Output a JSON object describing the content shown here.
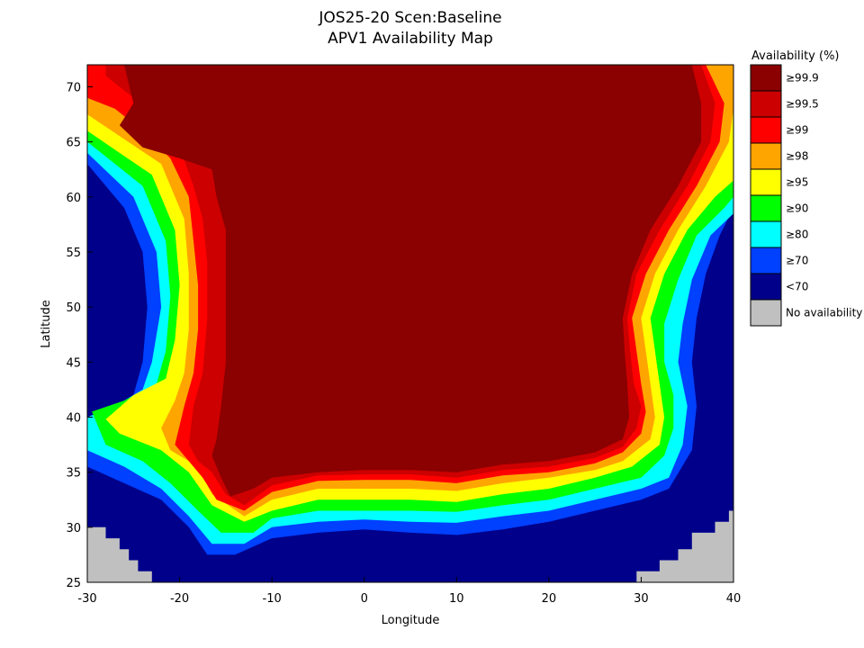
{
  "chart_data": {
    "type": "heatmap",
    "title_lines": [
      "JOS25-20 Scen:Baseline",
      "APV1 Availability Map"
    ],
    "xlabel": "Longitude",
    "ylabel": "Latitude",
    "xlim": [
      -30,
      40
    ],
    "ylim": [
      25,
      72
    ],
    "x_ticks": [
      -30,
      -20,
      -10,
      0,
      10,
      20,
      30,
      40
    ],
    "y_ticks": [
      25,
      30,
      35,
      40,
      45,
      50,
      55,
      60,
      65,
      70
    ],
    "legend": {
      "title": "Availability (%)",
      "placement": "right",
      "classes": [
        {
          "label": "≥99.9",
          "color": "#8b0000"
        },
        {
          "label": "≥99.5",
          "color": "#cc0000"
        },
        {
          "label": "≥99",
          "color": "#ff0000"
        },
        {
          "label": "≥98",
          "color": "#ffa500"
        },
        {
          "label": "≥95",
          "color": "#ffff00"
        },
        {
          "label": "≥90",
          "color": "#00ff00"
        },
        {
          "label": "≥80",
          "color": "#00ffff"
        },
        {
          "label": "≥70",
          "color": "#0040ff"
        },
        {
          "label": "<70",
          "color": "#00008b"
        },
        {
          "label": "No availability",
          "color": "#c0c0c0"
        }
      ]
    },
    "regions": [
      {
        "class": "<70",
        "polygon": [
          [
            -30,
            72
          ],
          [
            40,
            72
          ],
          [
            40,
            25
          ],
          [
            -30,
            25
          ]
        ]
      },
      {
        "class": "≥70",
        "polygon": [
          [
            -30,
            63
          ],
          [
            -26,
            59
          ],
          [
            -24,
            55
          ],
          [
            -23.5,
            50
          ],
          [
            -24,
            45
          ],
          [
            -25,
            42
          ],
          [
            -28,
            40.5
          ],
          [
            -30,
            39.5
          ],
          [
            -30,
            35.5
          ],
          [
            -26,
            34
          ],
          [
            -22,
            32.5
          ],
          [
            -19,
            30
          ],
          [
            -17,
            27.5
          ],
          [
            -14,
            27.5
          ],
          [
            -10,
            29
          ],
          [
            -5,
            29.5
          ],
          [
            0,
            29.8
          ],
          [
            5,
            29.5
          ],
          [
            10,
            29.3
          ],
          [
            15,
            29.8
          ],
          [
            20,
            30.5
          ],
          [
            25,
            31.5
          ],
          [
            30,
            32.5
          ],
          [
            33,
            33.5
          ],
          [
            35.5,
            37
          ],
          [
            36,
            41
          ],
          [
            35.5,
            45
          ],
          [
            36,
            49
          ],
          [
            37,
            53
          ],
          [
            38.5,
            56.5
          ],
          [
            40,
            59
          ],
          [
            40,
            72
          ],
          [
            -30,
            72
          ]
        ]
      },
      {
        "class": "≥80",
        "polygon": [
          [
            -30,
            64
          ],
          [
            -25,
            60
          ],
          [
            -22.5,
            55
          ],
          [
            -22,
            50
          ],
          [
            -23,
            45
          ],
          [
            -24,
            42.5
          ],
          [
            -27,
            41
          ],
          [
            -30,
            40
          ],
          [
            -30,
            37
          ],
          [
            -26,
            35.5
          ],
          [
            -22,
            33.5
          ],
          [
            -19,
            31
          ],
          [
            -16.5,
            28.5
          ],
          [
            -13,
            28.5
          ],
          [
            -10,
            30
          ],
          [
            -5,
            30.5
          ],
          [
            0,
            30.7
          ],
          [
            5,
            30.5
          ],
          [
            10,
            30.4
          ],
          [
            15,
            31
          ],
          [
            20,
            31.5
          ],
          [
            25,
            32.5
          ],
          [
            30,
            33.5
          ],
          [
            33,
            34.5
          ],
          [
            34.5,
            37.5
          ],
          [
            35,
            41
          ],
          [
            34,
            45
          ],
          [
            34.5,
            48.5
          ],
          [
            35.5,
            52.5
          ],
          [
            37.5,
            56.5
          ],
          [
            40,
            58.5
          ],
          [
            40,
            72
          ],
          [
            -30,
            72
          ]
        ]
      },
      {
        "class": "≥90",
        "polygon": [
          [
            -30,
            65
          ],
          [
            -24,
            61
          ],
          [
            -21.5,
            56
          ],
          [
            -21,
            51
          ],
          [
            -21.5,
            46
          ],
          [
            -22.5,
            43
          ],
          [
            -26,
            41.5
          ],
          [
            -29.5,
            40.5
          ],
          [
            -28,
            37.5
          ],
          [
            -24,
            36
          ],
          [
            -21,
            34
          ],
          [
            -18,
            31.5
          ],
          [
            -15.5,
            29.5
          ],
          [
            -12,
            29.5
          ],
          [
            -10,
            30.8
          ],
          [
            -5,
            31.5
          ],
          [
            0,
            31.5
          ],
          [
            5,
            31.5
          ],
          [
            10,
            31.4
          ],
          [
            15,
            32
          ],
          [
            20,
            32.5
          ],
          [
            25,
            33.5
          ],
          [
            30,
            34.5
          ],
          [
            32.5,
            36.5
          ],
          [
            33.5,
            39
          ],
          [
            33.5,
            42
          ],
          [
            32.5,
            45
          ],
          [
            32.5,
            48.5
          ],
          [
            34,
            52.5
          ],
          [
            36,
            56.5
          ],
          [
            39,
            59
          ],
          [
            40,
            60
          ],
          [
            40,
            72
          ],
          [
            -30,
            72
          ]
        ]
      },
      {
        "class": "≥95",
        "polygon": [
          [
            -30,
            66
          ],
          [
            -23,
            62
          ],
          [
            -20.5,
            57
          ],
          [
            -20,
            52
          ],
          [
            -20.5,
            47
          ],
          [
            -21.5,
            43.5
          ],
          [
            -25,
            42
          ],
          [
            -28,
            39.8
          ],
          [
            -26.5,
            38.5
          ],
          [
            -22,
            37
          ],
          [
            -19,
            35
          ],
          [
            -16.5,
            32
          ],
          [
            -13,
            30.5
          ],
          [
            -10,
            31.5
          ],
          [
            -5,
            32.5
          ],
          [
            0,
            32.5
          ],
          [
            5,
            32.5
          ],
          [
            10,
            32.3
          ],
          [
            15,
            33
          ],
          [
            20,
            33.5
          ],
          [
            25,
            34.5
          ],
          [
            29,
            35.5
          ],
          [
            32,
            37.5
          ],
          [
            32.5,
            40
          ],
          [
            32,
            43
          ],
          [
            31.5,
            46
          ],
          [
            31,
            49
          ],
          [
            32.5,
            53
          ],
          [
            35,
            57
          ],
          [
            38,
            60
          ],
          [
            40,
            61.5
          ],
          [
            40,
            72
          ],
          [
            -30,
            72
          ]
        ]
      },
      {
        "class": "≥98",
        "polygon": [
          [
            -30,
            67.5
          ],
          [
            -22,
            63
          ],
          [
            -19.5,
            58
          ],
          [
            -19,
            53
          ],
          [
            -19,
            48
          ],
          [
            -19.5,
            44
          ],
          [
            -20.5,
            41.5
          ],
          [
            -22,
            39
          ],
          [
            -21,
            37
          ],
          [
            -18,
            35.5
          ],
          [
            -16.5,
            33
          ],
          [
            -13,
            31
          ],
          [
            -10,
            32.5
          ],
          [
            -5,
            33.5
          ],
          [
            0,
            33.5
          ],
          [
            5,
            33.5
          ],
          [
            10,
            33.3
          ],
          [
            15,
            34
          ],
          [
            20,
            34.5
          ],
          [
            25,
            35.2
          ],
          [
            28,
            36
          ],
          [
            31,
            38
          ],
          [
            31.5,
            40
          ],
          [
            31,
            43
          ],
          [
            30.5,
            46
          ],
          [
            30,
            49
          ],
          [
            31.5,
            53
          ],
          [
            34,
            57
          ],
          [
            37,
            61
          ],
          [
            39.5,
            65
          ],
          [
            40,
            68
          ],
          [
            40,
            72
          ],
          [
            -30,
            72
          ]
        ]
      },
      {
        "class": "≥99",
        "polygon": [
          [
            -30,
            69
          ],
          [
            -27,
            68
          ],
          [
            -24,
            66
          ],
          [
            -21,
            63.5
          ],
          [
            -19,
            60
          ],
          [
            -18.5,
            56
          ],
          [
            -18,
            52
          ],
          [
            -18,
            48
          ],
          [
            -18.5,
            44
          ],
          [
            -19.5,
            41
          ],
          [
            -20.5,
            37.5
          ],
          [
            -19,
            36
          ],
          [
            -17.5,
            34.5
          ],
          [
            -16,
            32.5
          ],
          [
            -13,
            31.5
          ],
          [
            -10,
            33.2
          ],
          [
            -5,
            34.2
          ],
          [
            0,
            34.3
          ],
          [
            5,
            34.3
          ],
          [
            10,
            34
          ],
          [
            15,
            34.7
          ],
          [
            20,
            35
          ],
          [
            25,
            35.8
          ],
          [
            28,
            36.8
          ],
          [
            30,
            38.5
          ],
          [
            30.5,
            40.5
          ],
          [
            30,
            43
          ],
          [
            29.5,
            46
          ],
          [
            29,
            49
          ],
          [
            30.5,
            53
          ],
          [
            33,
            57
          ],
          [
            36,
            61
          ],
          [
            38.5,
            65
          ],
          [
            39,
            68.5
          ],
          [
            37,
            72
          ],
          [
            -30,
            72
          ]
        ]
      },
      {
        "class": "≥99.5",
        "polygon": [
          [
            -28,
            71
          ],
          [
            -25,
            69
          ],
          [
            -22,
            67
          ],
          [
            -20,
            64.5
          ],
          [
            -18.5,
            61
          ],
          [
            -17.5,
            58
          ],
          [
            -17,
            54
          ],
          [
            -17,
            49
          ],
          [
            -17.5,
            44
          ],
          [
            -18.5,
            41
          ],
          [
            -19,
            37.5
          ],
          [
            -18,
            36
          ],
          [
            -16.5,
            35
          ],
          [
            -15,
            33
          ],
          [
            -13,
            32
          ],
          [
            -10,
            33.8
          ],
          [
            -5,
            34.7
          ],
          [
            0,
            34.8
          ],
          [
            5,
            34.8
          ],
          [
            10,
            34.5
          ],
          [
            15,
            35.2
          ],
          [
            20,
            35.5
          ],
          [
            25,
            36.3
          ],
          [
            28,
            37.3
          ],
          [
            29.5,
            39
          ],
          [
            30,
            41
          ],
          [
            29.2,
            43
          ],
          [
            28.8,
            46
          ],
          [
            28.5,
            49
          ],
          [
            29.5,
            53
          ],
          [
            32,
            57
          ],
          [
            35,
            61
          ],
          [
            37.5,
            65
          ],
          [
            38,
            68.5
          ],
          [
            36.5,
            72
          ],
          [
            -28,
            72
          ]
        ]
      },
      {
        "class": "≥99.9",
        "polygon": [
          [
            -26,
            72
          ],
          [
            -25,
            68.5
          ],
          [
            -26.5,
            66.5
          ],
          [
            -24,
            64.5
          ],
          [
            -20,
            63.5
          ],
          [
            -16.5,
            62.5
          ],
          [
            -16,
            60
          ],
          [
            -15,
            57
          ],
          [
            -15,
            53
          ],
          [
            -15,
            49
          ],
          [
            -15,
            45
          ],
          [
            -15.5,
            41
          ],
          [
            -16,
            38
          ],
          [
            -16.5,
            36.5
          ],
          [
            -15.5,
            34.5
          ],
          [
            -14.5,
            32.8
          ],
          [
            -12,
            33.5
          ],
          [
            -10,
            34.5
          ],
          [
            -5,
            35
          ],
          [
            0,
            35.2
          ],
          [
            5,
            35.2
          ],
          [
            10,
            35
          ],
          [
            15,
            35.7
          ],
          [
            20,
            36
          ],
          [
            25,
            36.8
          ],
          [
            28,
            38
          ],
          [
            28.7,
            40
          ],
          [
            28.5,
            43
          ],
          [
            28.2,
            46
          ],
          [
            28,
            49
          ],
          [
            29,
            53
          ],
          [
            31,
            57
          ],
          [
            34,
            61
          ],
          [
            36.5,
            65
          ],
          [
            36.5,
            68.5
          ],
          [
            35.5,
            72
          ]
        ]
      },
      {
        "class": "No availability",
        "polygon": [
          [
            -30,
            25
          ],
          [
            -30,
            30
          ],
          [
            -28,
            30
          ],
          [
            -28,
            29
          ],
          [
            -26.5,
            29
          ],
          [
            -26.5,
            28
          ],
          [
            -25.5,
            28
          ],
          [
            -25.5,
            27
          ],
          [
            -24.5,
            27
          ],
          [
            -24.5,
            26
          ],
          [
            -23,
            26
          ],
          [
            -23,
            25
          ]
        ]
      },
      {
        "class": "No availability",
        "polygon": [
          [
            29.5,
            25
          ],
          [
            29.5,
            26
          ],
          [
            32,
            26
          ],
          [
            32,
            27
          ],
          [
            34,
            27
          ],
          [
            34,
            28
          ],
          [
            35.5,
            28
          ],
          [
            35.5,
            29.5
          ],
          [
            38,
            29.5
          ],
          [
            38,
            30.5
          ],
          [
            39.5,
            30.5
          ],
          [
            39.5,
            31.5
          ],
          [
            40,
            31.5
          ],
          [
            40,
            25
          ]
        ]
      }
    ]
  }
}
